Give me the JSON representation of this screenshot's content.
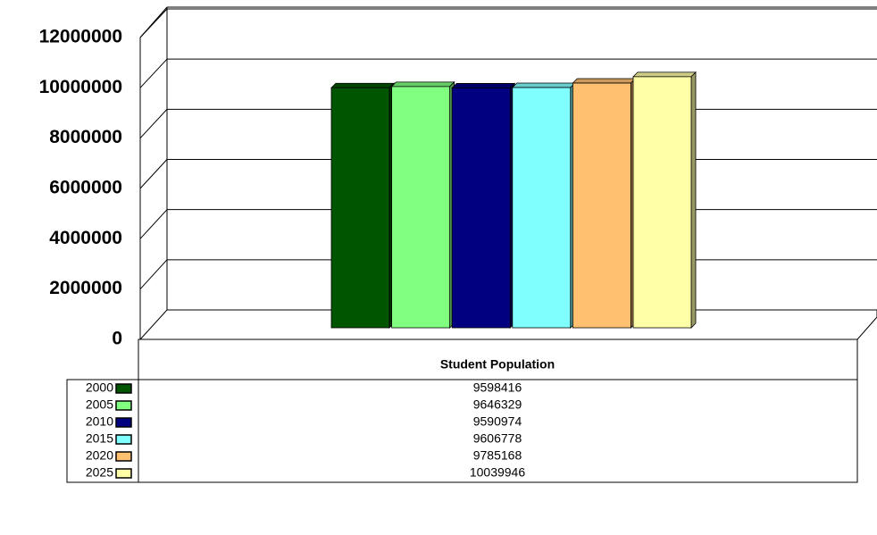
{
  "chart_data": {
    "type": "bar",
    "categories": [
      "Student Population"
    ],
    "series": [
      {
        "name": "2000",
        "color": "#005500",
        "values": [
          9598416
        ]
      },
      {
        "name": "2005",
        "color": "#80ff80",
        "values": [
          9646329
        ]
      },
      {
        "name": "2010",
        "color": "#000080",
        "values": [
          9590974
        ]
      },
      {
        "name": "2015",
        "color": "#80ffff",
        "values": [
          9606778
        ]
      },
      {
        "name": "2020",
        "color": "#ffc070",
        "values": [
          9785168
        ]
      },
      {
        "name": "2025",
        "color": "#ffffa8",
        "values": [
          10039946
        ]
      }
    ],
    "ylim": [
      0,
      12000000
    ],
    "yticks": [
      0,
      2000000,
      4000000,
      6000000,
      8000000,
      10000000,
      12000000
    ],
    "grid": true
  }
}
